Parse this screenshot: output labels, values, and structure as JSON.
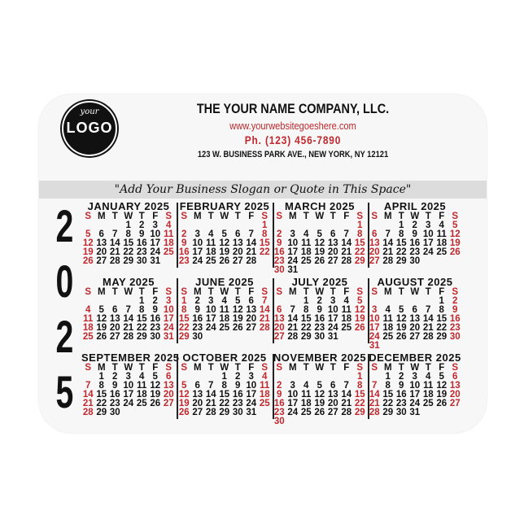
{
  "header": {
    "logo_text": [
      "your",
      "LOGO",
      "here"
    ],
    "company": "THE YOUR NAME COMPANY, LLC.",
    "website": "www.yourwebsitegoeshere.com",
    "phone": "Ph.  (123) 456-7890",
    "address": "123 W. BUSINESS PARK AVE., NEW YORK, NY 12121",
    "slogan": "\"Add Your Business Slogan or Quote in This Space\""
  },
  "year_digits": [
    "2",
    "0",
    "2",
    "5"
  ],
  "weekdays": [
    "S",
    "M",
    "T",
    "W",
    "T",
    "F",
    "S"
  ],
  "colors": {
    "weekend": "#c0282d",
    "text": "#111111",
    "band": "#dcdcdc"
  },
  "months": [
    {
      "title": "JANUARY 2025",
      "weeks": [
        [
          null,
          null,
          null,
          1,
          2,
          3,
          4
        ],
        [
          5,
          6,
          7,
          8,
          9,
          10,
          11
        ],
        [
          12,
          13,
          14,
          15,
          16,
          17,
          18
        ],
        [
          19,
          20,
          21,
          22,
          23,
          24,
          25
        ],
        [
          26,
          27,
          28,
          29,
          30,
          31,
          null
        ]
      ]
    },
    {
      "title": "FEBRUARY 2025",
      "weeks": [
        [
          null,
          null,
          null,
          null,
          null,
          null,
          1
        ],
        [
          2,
          3,
          4,
          5,
          6,
          7,
          8
        ],
        [
          9,
          10,
          11,
          12,
          13,
          14,
          15
        ],
        [
          16,
          17,
          18,
          19,
          20,
          21,
          22
        ],
        [
          23,
          24,
          25,
          26,
          27,
          28,
          null
        ]
      ]
    },
    {
      "title": "MARCH 2025",
      "weeks": [
        [
          null,
          null,
          null,
          null,
          null,
          null,
          1
        ],
        [
          2,
          3,
          4,
          5,
          6,
          7,
          8
        ],
        [
          9,
          10,
          11,
          12,
          13,
          14,
          15
        ],
        [
          16,
          17,
          18,
          19,
          20,
          21,
          22
        ],
        [
          23,
          24,
          25,
          26,
          27,
          28,
          29
        ],
        [
          30,
          31,
          null,
          null,
          null,
          null,
          null
        ]
      ]
    },
    {
      "title": "APRIL 2025",
      "weeks": [
        [
          null,
          null,
          1,
          2,
          3,
          4,
          5
        ],
        [
          6,
          7,
          8,
          9,
          10,
          11,
          12
        ],
        [
          13,
          14,
          15,
          16,
          17,
          18,
          19
        ],
        [
          20,
          21,
          22,
          23,
          24,
          25,
          26
        ],
        [
          27,
          28,
          29,
          30,
          null,
          null,
          null
        ]
      ]
    },
    {
      "title": "MAY 2025",
      "weeks": [
        [
          null,
          null,
          null,
          null,
          1,
          2,
          3
        ],
        [
          4,
          5,
          6,
          7,
          8,
          9,
          10
        ],
        [
          11,
          12,
          13,
          14,
          15,
          16,
          17
        ],
        [
          18,
          19,
          20,
          21,
          22,
          23,
          24
        ],
        [
          25,
          26,
          27,
          28,
          29,
          30,
          31
        ]
      ]
    },
    {
      "title": "JUNE 2025",
      "weeks": [
        [
          1,
          2,
          3,
          4,
          5,
          6,
          7
        ],
        [
          8,
          9,
          10,
          11,
          12,
          13,
          14
        ],
        [
          15,
          16,
          17,
          18,
          19,
          20,
          21
        ],
        [
          22,
          23,
          24,
          25,
          26,
          27,
          28
        ],
        [
          29,
          30,
          null,
          null,
          null,
          null,
          null
        ]
      ]
    },
    {
      "title": "JULY 2025",
      "weeks": [
        [
          null,
          null,
          1,
          2,
          3,
          4,
          5
        ],
        [
          6,
          7,
          8,
          9,
          10,
          11,
          12
        ],
        [
          13,
          14,
          15,
          16,
          17,
          18,
          19
        ],
        [
          20,
          21,
          22,
          23,
          24,
          25,
          26
        ],
        [
          27,
          28,
          29,
          30,
          31,
          null,
          null
        ]
      ]
    },
    {
      "title": "AUGUST 2025",
      "weeks": [
        [
          null,
          null,
          null,
          null,
          null,
          1,
          2
        ],
        [
          3,
          4,
          5,
          6,
          7,
          8,
          9
        ],
        [
          10,
          11,
          12,
          13,
          14,
          15,
          16
        ],
        [
          17,
          18,
          19,
          20,
          21,
          22,
          23
        ],
        [
          24,
          25,
          26,
          27,
          28,
          29,
          30
        ],
        [
          31,
          null,
          null,
          null,
          null,
          null,
          null
        ]
      ]
    },
    {
      "title": "SEPTEMBER 2025",
      "weeks": [
        [
          null,
          1,
          2,
          3,
          4,
          5,
          6
        ],
        [
          7,
          8,
          9,
          10,
          11,
          12,
          13
        ],
        [
          14,
          15,
          16,
          17,
          18,
          19,
          20
        ],
        [
          21,
          22,
          23,
          24,
          25,
          26,
          27
        ],
        [
          28,
          29,
          30,
          null,
          null,
          null,
          null
        ]
      ]
    },
    {
      "title": "OCTOBER 2025",
      "weeks": [
        [
          null,
          null,
          null,
          1,
          2,
          3,
          4
        ],
        [
          5,
          6,
          7,
          8,
          9,
          10,
          11
        ],
        [
          12,
          13,
          14,
          15,
          16,
          17,
          18
        ],
        [
          19,
          20,
          21,
          22,
          23,
          24,
          25
        ],
        [
          26,
          27,
          28,
          29,
          30,
          31,
          null
        ]
      ]
    },
    {
      "title": "NOVEMBER 2025",
      "weeks": [
        [
          null,
          null,
          null,
          null,
          null,
          null,
          1
        ],
        [
          2,
          3,
          4,
          5,
          6,
          7,
          8
        ],
        [
          9,
          10,
          11,
          12,
          13,
          14,
          15
        ],
        [
          16,
          17,
          18,
          19,
          20,
          21,
          22
        ],
        [
          23,
          24,
          25,
          26,
          27,
          28,
          29
        ],
        [
          30,
          null,
          null,
          null,
          null,
          null,
          null
        ]
      ]
    },
    {
      "title": "DECEMBER 2025",
      "weeks": [
        [
          null,
          1,
          2,
          3,
          4,
          5,
          6
        ],
        [
          7,
          8,
          9,
          10,
          11,
          12,
          13
        ],
        [
          14,
          15,
          16,
          17,
          18,
          19,
          20
        ],
        [
          21,
          22,
          23,
          24,
          25,
          26,
          27
        ],
        [
          28,
          29,
          30,
          31,
          null,
          null,
          null
        ]
      ]
    }
  ]
}
